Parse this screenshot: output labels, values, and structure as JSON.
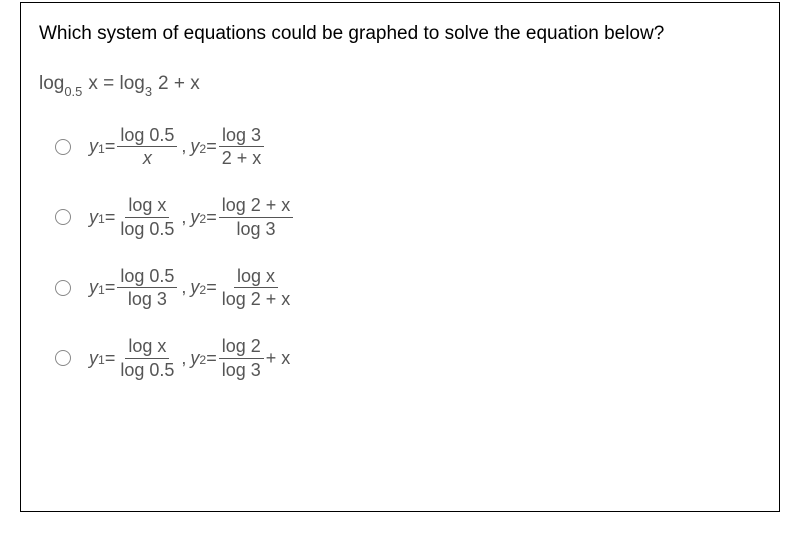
{
  "question": "Which system of equations could be graphed to solve the equation below?",
  "main_equation": {
    "lhs_base": "0.5",
    "lhs_arg": "x",
    "rhs_base": "3",
    "rhs_arg": "2 + x"
  },
  "options": [
    {
      "y1_num": "log 0.5",
      "y1_den": "x",
      "y2_num": "log 3",
      "y2_den": "2 + x",
      "tail": ""
    },
    {
      "y1_num": "log x",
      "y1_den": "log 0.5",
      "y2_num": "log 2 + x",
      "y2_den": "log 3",
      "tail": ""
    },
    {
      "y1_num": "log 0.5",
      "y1_den": "log 3",
      "y2_num": "log x",
      "y2_den": "log 2 + x",
      "tail": ""
    },
    {
      "y1_num": "log x",
      "y1_den": "log 0.5",
      "y2_num": "log 2",
      "y2_den": "log 3",
      "tail": " + x"
    }
  ],
  "labels": {
    "y1": "y",
    "sub1": "1",
    "y2": "y",
    "sub2": "2",
    "eq": " = ",
    "log": "log",
    "comma": ","
  },
  "style": {
    "text_color": "#555555",
    "question_color": "#000000",
    "border_color": "#000000",
    "radio_border": "#888888",
    "font_size_question": 19,
    "font_size_option": 18,
    "background": "#ffffff"
  }
}
